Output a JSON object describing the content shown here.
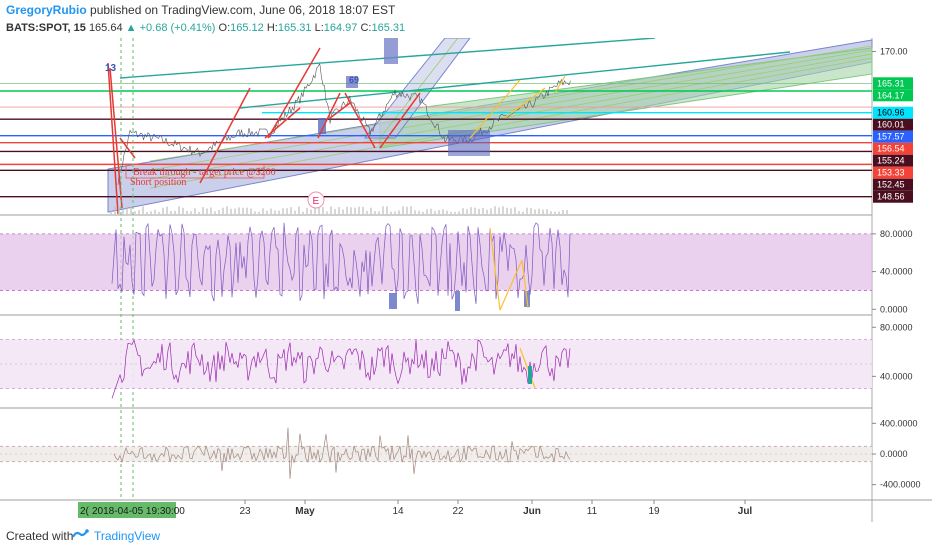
{
  "header": {
    "author": "GregoryRubio",
    "published_text": "published on TradingView.com, June 06, 2018 18:07 EST",
    "symbol": "BATS:SPOT, 15",
    "last": "165.64",
    "change": "+0.68 (+0.41%)",
    "open_label": "O:",
    "open": "165.12",
    "high_label": "H:",
    "high": "165.31",
    "low_label": "L:",
    "low": "164.97",
    "close_label": "C:",
    "close": "165.31"
  },
  "annotations": {
    "target_text": "Break through - target price @$200",
    "short_text": "Short position",
    "event_marker": "E",
    "label_13": "13",
    "label_69": "69",
    "date_badge": "2018-04-05 19:30:00",
    "date_badge_prefix": "2("
  },
  "footer": {
    "created_with": "Created with",
    "brand": "TradingView"
  },
  "colors": {
    "green_channel": "#a5d6a7",
    "blue_channel": "#9fa8da",
    "red_line": "#e53935",
    "teal_line": "#26a69a",
    "purple_band": "#e1bee7",
    "price_red": "#f44336",
    "price_dark": "#4a0e1f",
    "price_green": "#00c853",
    "price_cyan": "#00e5ff",
    "price_blue": "#2962ff"
  },
  "chart_data": [
    {
      "type": "line",
      "pane": "price",
      "title": "",
      "ylim": [
        146,
        172
      ],
      "y_ticks": [
        170.0
      ],
      "price_labels": [
        {
          "value": 165.31,
          "text": "165.31",
          "color": "#00c853"
        },
        {
          "value": 164.17,
          "text": "164.17",
          "color": "#00c853"
        },
        {
          "value": 160.96,
          "text": "160.96",
          "color": "#00e5ff"
        },
        {
          "value": 160.01,
          "text": "160.01",
          "color": "#4a0e1f"
        },
        {
          "value": 157.57,
          "text": "157.57",
          "color": "#2962ff"
        },
        {
          "value": 156.54,
          "text": "156.54",
          "color": "#f44336"
        },
        {
          "value": 155.24,
          "text": "155.24",
          "color": "#4a0e1f"
        },
        {
          "value": 153.33,
          "text": "153.33",
          "color": "#f44336"
        },
        {
          "value": 152.45,
          "text": "152.45",
          "color": "#4a0e1f"
        },
        {
          "value": 148.56,
          "text": "148.56",
          "color": "#4a0e1f"
        }
      ],
      "x_ticks": [
        "23",
        "May",
        "14",
        "22",
        "Jun",
        "11",
        "19",
        "Jul"
      ]
    },
    {
      "type": "line",
      "pane": "stochastic",
      "ylim": [
        -5,
        100
      ],
      "y_ticks": [
        80.0,
        40.0,
        0.0
      ],
      "tick_labels": [
        "80.0000",
        "40.0000",
        "0.0000"
      ],
      "band": [
        20,
        80
      ]
    },
    {
      "type": "line",
      "pane": "rsi",
      "ylim": [
        15,
        90
      ],
      "y_ticks": [
        80.0,
        40.0
      ],
      "tick_labels": [
        "80.0000",
        "40.0000"
      ],
      "band": [
        30,
        70
      ]
    },
    {
      "type": "line",
      "pane": "cci",
      "ylim": [
        -600,
        600
      ],
      "y_ticks": [
        400,
        0,
        -400
      ],
      "tick_labels": [
        "400.0000",
        "0.0000",
        "-400.0000"
      ],
      "band": [
        -100,
        100
      ]
    }
  ]
}
